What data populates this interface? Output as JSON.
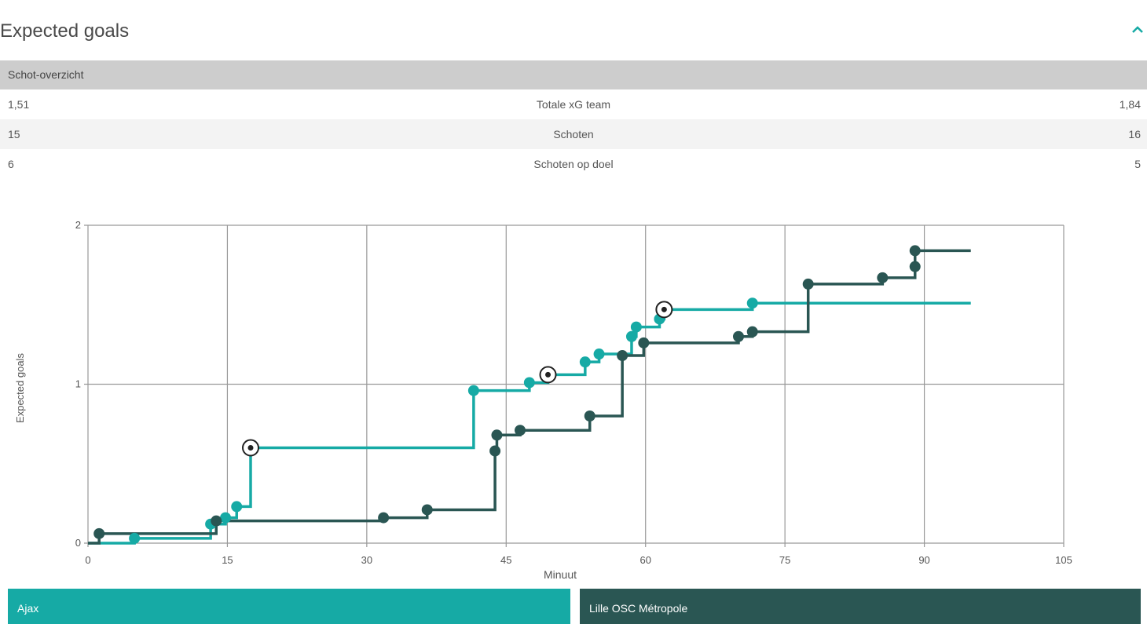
{
  "section": {
    "title": "Expected goals",
    "collapse_icon": "chevron-up-icon"
  },
  "stats": {
    "header": "Schot-overzicht",
    "rows": [
      {
        "home": "1,51",
        "label": "Totale xG team",
        "away": "1,84"
      },
      {
        "home": "15",
        "label": "Schoten",
        "away": "16"
      },
      {
        "home": "6",
        "label": "Schoten op doel",
        "away": "5"
      }
    ]
  },
  "colors": {
    "ajax": "#16aaa5",
    "lille": "#2a5653",
    "grid": "#999999"
  },
  "chart_data": {
    "type": "line",
    "step": true,
    "xlabel": "Minuut",
    "ylabel": "Expected goals",
    "xlim": [
      0,
      105
    ],
    "ylim": [
      0,
      2
    ],
    "xticks": [
      0,
      15,
      30,
      45,
      60,
      75,
      90,
      105
    ],
    "yticks": [
      0,
      1,
      2
    ],
    "grid": true,
    "end_minute": 95,
    "series": [
      {
        "name": "Ajax",
        "color": "#16aaa5",
        "shots": [
          {
            "x": 5,
            "y": 0.03
          },
          {
            "x": 13.2,
            "y": 0.12
          },
          {
            "x": 14.8,
            "y": 0.16
          },
          {
            "x": 16,
            "y": 0.23
          },
          {
            "x": 17.5,
            "y": 0.6,
            "goal": true
          },
          {
            "x": 41.5,
            "y": 0.96
          },
          {
            "x": 47.5,
            "y": 1.01
          },
          {
            "x": 49.5,
            "y": 1.06,
            "goal": true
          },
          {
            "x": 53.5,
            "y": 1.14
          },
          {
            "x": 55,
            "y": 1.19
          },
          {
            "x": 58.5,
            "y": 1.3
          },
          {
            "x": 59,
            "y": 1.36
          },
          {
            "x": 61.5,
            "y": 1.41
          },
          {
            "x": 62,
            "y": 1.47,
            "goal": true
          },
          {
            "x": 71.5,
            "y": 1.51
          }
        ]
      },
      {
        "name": "Lille OSC Métropole",
        "color": "#2a5653",
        "shots": [
          {
            "x": 1.2,
            "y": 0.06
          },
          {
            "x": 13.8,
            "y": 0.14
          },
          {
            "x": 31.8,
            "y": 0.16
          },
          {
            "x": 36.5,
            "y": 0.21
          },
          {
            "x": 43.8,
            "y": 0.58
          },
          {
            "x": 44,
            "y": 0.68
          },
          {
            "x": 46.5,
            "y": 0.71
          },
          {
            "x": 54,
            "y": 0.8
          },
          {
            "x": 57.5,
            "y": 1.18
          },
          {
            "x": 59.8,
            "y": 1.26
          },
          {
            "x": 70,
            "y": 1.3
          },
          {
            "x": 71.5,
            "y": 1.33
          },
          {
            "x": 77.5,
            "y": 1.63
          },
          {
            "x": 85.5,
            "y": 1.67
          },
          {
            "x": 89,
            "y": 1.74
          },
          {
            "x": 89,
            "y": 1.84
          }
        ]
      }
    ]
  }
}
